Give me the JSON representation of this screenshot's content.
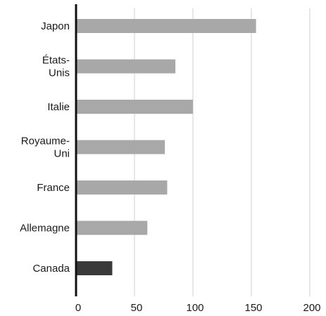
{
  "chart_data": {
    "type": "bar",
    "orientation": "horizontal",
    "categories": [
      [
        "Japon"
      ],
      [
        "États-",
        "Unis"
      ],
      [
        "Italie"
      ],
      [
        "Royaume-",
        "Uni"
      ],
      [
        "France"
      ],
      [
        "Allemagne"
      ],
      [
        "Canada"
      ]
    ],
    "values": [
      154,
      85,
      100,
      76,
      78,
      61,
      31
    ],
    "xlim": [
      0,
      200
    ],
    "xticks": [
      "0",
      "50",
      "100",
      "150",
      "200"
    ],
    "grid": "vertical",
    "title": "",
    "xlabel": "",
    "ylabel": "",
    "colors": {
      "bar": "#a8a8a8",
      "highlight_bar": "#3a3a3a",
      "highlight_category": "Canada",
      "axis": "#111111",
      "grid": "#cfcfcf"
    }
  }
}
